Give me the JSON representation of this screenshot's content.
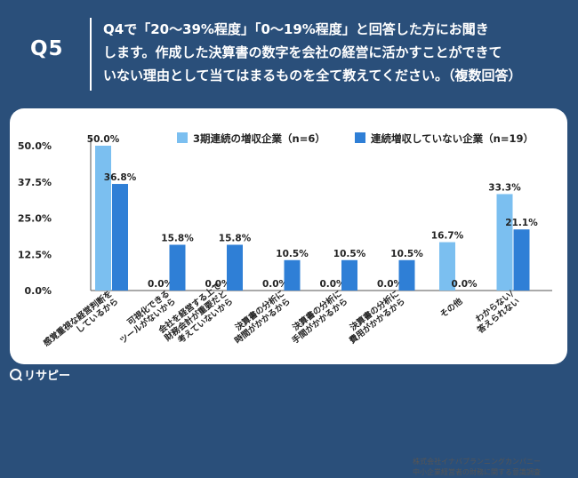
{
  "header": {
    "badge": "Q5",
    "question": "Q4で「20〜39%程度」「0〜19%程度」と回答した方にお聞き\nします。作成した決算書の数字を会社の経営に活かすことができて\nいない理由として当てはまるものを全て教えてください。（複数回答）"
  },
  "footer": {
    "logo": "リサピー",
    "source_line1": "株式会社イナバプランニングカンパニー",
    "source_line2": "中小企業経営者の財務に関する意識調査"
  },
  "colors": {
    "background": "#2a4f7a",
    "series1": "#7bbff0",
    "series2": "#2f7fd6"
  },
  "chart_data": {
    "type": "bar",
    "categories": [
      "感覚重視な経営判断を\nしているから",
      "可視化できる\nツールがないから",
      "会社を経営する上で\n財務会計が重要だと\n考えていないから",
      "決算書の分析に\n時間がかかるから",
      "決算書の分析に\n手間がかかるから",
      "決算書の分析に\n費用がかかるから",
      "その他",
      "わからない/\n答えられない"
    ],
    "series": [
      {
        "name": "3期連続の増収企業（n=6）",
        "values": [
          50.0,
          0.0,
          0.0,
          0.0,
          0.0,
          0.0,
          16.7,
          33.3
        ],
        "labels": [
          "50.0%",
          "0.0%",
          "0.0%",
          "0.0%",
          "0.0%",
          "0.0%",
          "16.7%",
          "33.3%"
        ]
      },
      {
        "name": "連続増収していない企業（n=19）",
        "values": [
          36.8,
          15.8,
          15.8,
          10.5,
          10.5,
          10.5,
          0.0,
          21.1
        ],
        "labels": [
          "36.8%",
          "15.8%",
          "15.8%",
          "10.5%",
          "10.5%",
          "10.5%",
          "0.0%",
          "21.1%"
        ]
      }
    ],
    "yticks": [
      "0.0%",
      "12.5%",
      "25.0%",
      "37.5%",
      "50.0%"
    ],
    "ytick_values": [
      0,
      12.5,
      25,
      37.5,
      50
    ],
    "ylim": [
      0,
      50
    ],
    "legend_position": "top-right",
    "grid": false
  }
}
